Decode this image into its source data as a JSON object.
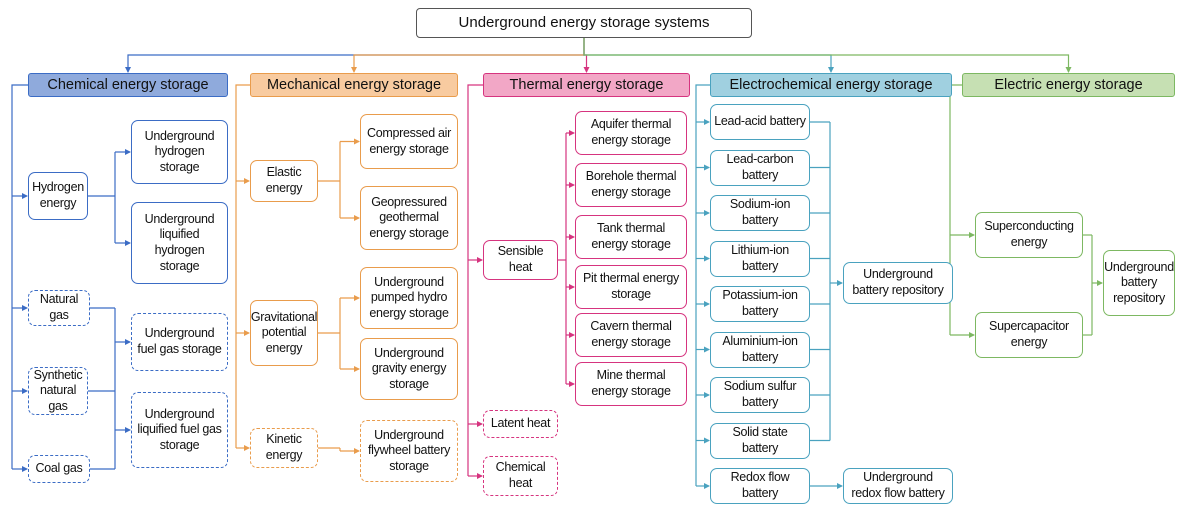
{
  "title": "Underground energy storage systems",
  "columns": [
    {
      "header": "Chemical energy storage",
      "nodes": [
        {
          "label": "Hydrogen energy"
        },
        {
          "label": "Underground hydrogen storage"
        },
        {
          "label": "Underground liquified hydrogen storage"
        },
        {
          "label": "Natural gas"
        },
        {
          "label": "Underground fuel gas storage"
        },
        {
          "label": "Synthetic natural gas"
        },
        {
          "label": "Underground liquified fuel gas storage"
        },
        {
          "label": "Coal gas"
        }
      ]
    },
    {
      "header": "Mechanical energy storage",
      "nodes": [
        {
          "label": "Elastic energy"
        },
        {
          "label": "Compressed air energy storage"
        },
        {
          "label": "Geopressured geothermal energy storage"
        },
        {
          "label": "Gravitational potential energy"
        },
        {
          "label": "Underground pumped hydro energy storage"
        },
        {
          "label": "Underground gravity energy storage"
        },
        {
          "label": "Kinetic energy"
        },
        {
          "label": "Underground flywheel battery storage"
        }
      ]
    },
    {
      "header": "Thermal energy storage",
      "nodes": [
        {
          "label": "Sensible heat"
        },
        {
          "label": "Aquifer thermal energy storage"
        },
        {
          "label": "Borehole thermal energy storage"
        },
        {
          "label": "Tank thermal energy storage"
        },
        {
          "label": "Pit thermal energy storage"
        },
        {
          "label": "Cavern thermal energy storage"
        },
        {
          "label": "Mine thermal energy storage"
        },
        {
          "label": "Latent heat"
        },
        {
          "label": "Chemical heat"
        }
      ]
    },
    {
      "header": "Electrochemical energy storage",
      "nodes": [
        {
          "label": "Lead-acid battery"
        },
        {
          "label": "Lead-carbon battery"
        },
        {
          "label": "Sodium-ion battery"
        },
        {
          "label": "Lithium-ion battery"
        },
        {
          "label": "Potassium-ion battery"
        },
        {
          "label": "Aluminium-ion battery"
        },
        {
          "label": "Sodium sulfur battery"
        },
        {
          "label": "Solid state battery"
        },
        {
          "label": "Redox flow battery"
        },
        {
          "label": "Underground battery repository"
        },
        {
          "label": "Underground redox flow battery"
        }
      ]
    },
    {
      "header": "Electric energy storage",
      "nodes": [
        {
          "label": "Superconducting energy"
        },
        {
          "label": "Supercapacitor energy"
        },
        {
          "label": "Underground battery repository"
        }
      ]
    }
  ]
}
